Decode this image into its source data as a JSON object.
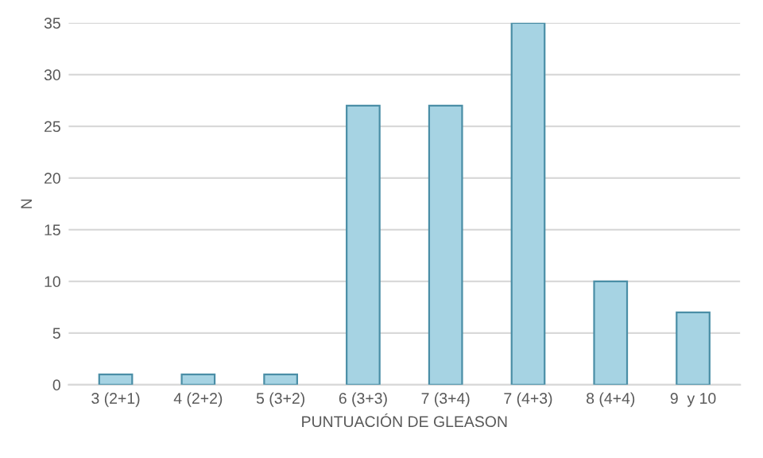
{
  "chart_data": {
    "type": "bar",
    "xlabel": "PUNTUACIÓN DE GLEASON",
    "ylabel": "N",
    "categories": [
      "3 (2+1)",
      "4 (2+2)",
      "5 (3+2)",
      "6 (3+3)",
      "7 (3+4)",
      "7 (4+3)",
      "8 (4+4)",
      "9  y 10"
    ],
    "values": [
      1,
      1,
      1,
      27,
      27,
      35,
      10,
      7
    ],
    "color": "#a6d3e3",
    "ylim": [
      0,
      35
    ],
    "yticks": [
      0,
      5,
      10,
      15,
      20,
      25,
      30,
      35
    ],
    "grid": "y"
  }
}
